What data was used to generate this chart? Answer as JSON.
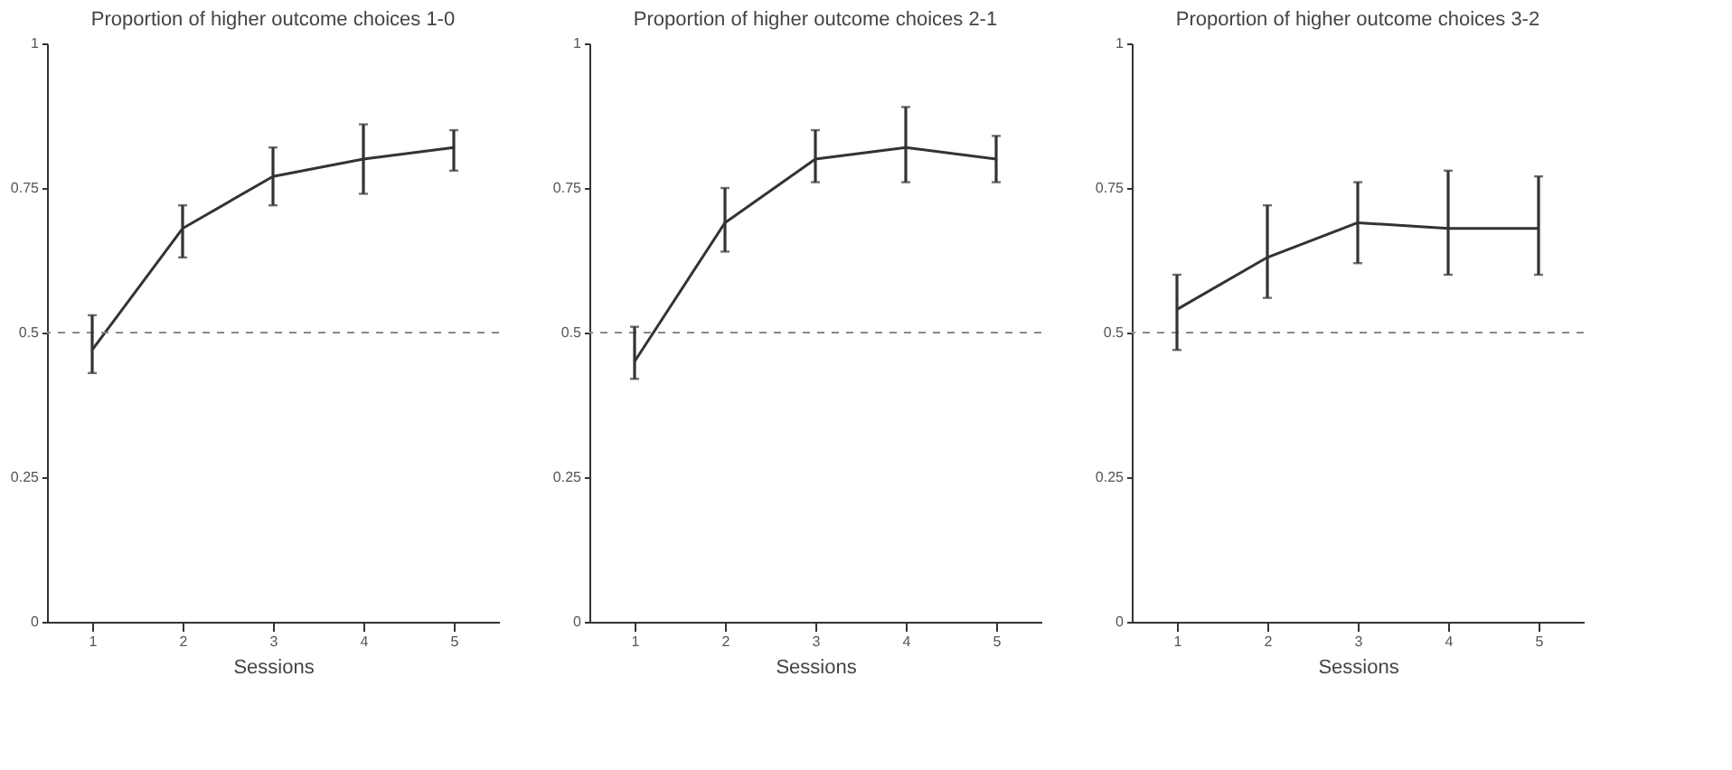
{
  "chart_data": [
    {
      "type": "line",
      "title": "Proportion of higher outcome choices 1-0",
      "xlabel": "Sessions",
      "x": [
        1,
        2,
        3,
        4,
        5
      ],
      "series": [
        {
          "color": "#333333",
          "values": [
            0.47,
            0.68,
            0.77,
            0.8,
            0.82
          ],
          "errors": [
            [
              0.43,
              0.53
            ],
            [
              0.63,
              0.72
            ],
            [
              0.72,
              0.82
            ],
            [
              0.74,
              0.86
            ],
            [
              0.78,
              0.85
            ]
          ]
        }
      ],
      "xlim": [
        0.5,
        5.5
      ],
      "xticks": [
        1,
        2,
        3,
        4,
        5
      ],
      "ylim": [
        0,
        1
      ],
      "yticks": [
        0,
        0.25,
        0.5,
        0.75,
        1
      ],
      "grid": false,
      "marker": "none",
      "line_style": "solid",
      "ref_lines": [
        {
          "axis": "y",
          "value": 0.5,
          "color": "#888888",
          "line_style": "dashed"
        }
      ]
    },
    {
      "type": "line",
      "title": "Proportion of higher outcome choices 2-1",
      "xlabel": "Sessions",
      "x": [
        1,
        2,
        3,
        4,
        5
      ],
      "series": [
        {
          "color": "#333333",
          "values": [
            0.45,
            0.69,
            0.8,
            0.82,
            0.8
          ],
          "errors": [
            [
              0.42,
              0.51
            ],
            [
              0.64,
              0.75
            ],
            [
              0.76,
              0.85
            ],
            [
              0.76,
              0.89
            ],
            [
              0.76,
              0.84
            ]
          ]
        }
      ],
      "xlim": [
        0.5,
        5.5
      ],
      "xticks": [
        1,
        2,
        3,
        4,
        5
      ],
      "ylim": [
        0,
        1
      ],
      "yticks": [
        0,
        0.25,
        0.5,
        0.75,
        1
      ],
      "grid": false,
      "marker": "none",
      "line_style": "solid",
      "ref_lines": [
        {
          "axis": "y",
          "value": 0.5,
          "color": "#888888",
          "line_style": "dashed"
        }
      ]
    },
    {
      "type": "line",
      "title": "Proportion of higher outcome choices 3-2",
      "xlabel": "Sessions",
      "x": [
        1,
        2,
        3,
        4,
        5
      ],
      "series": [
        {
          "color": "#333333",
          "values": [
            0.54,
            0.63,
            0.69,
            0.68,
            0.68
          ],
          "errors": [
            [
              0.47,
              0.6
            ],
            [
              0.56,
              0.72
            ],
            [
              0.62,
              0.76
            ],
            [
              0.6,
              0.78
            ],
            [
              0.6,
              0.77
            ]
          ]
        }
      ],
      "xlim": [
        0.5,
        5.5
      ],
      "xticks": [
        1,
        2,
        3,
        4,
        5
      ],
      "ylim": [
        0,
        1
      ],
      "yticks": [
        0,
        0.25,
        0.5,
        0.75,
        1
      ],
      "grid": false,
      "marker": "none",
      "line_style": "solid",
      "ref_lines": [
        {
          "axis": "y",
          "value": 0.5,
          "color": "#888888",
          "line_style": "dashed"
        }
      ]
    }
  ]
}
